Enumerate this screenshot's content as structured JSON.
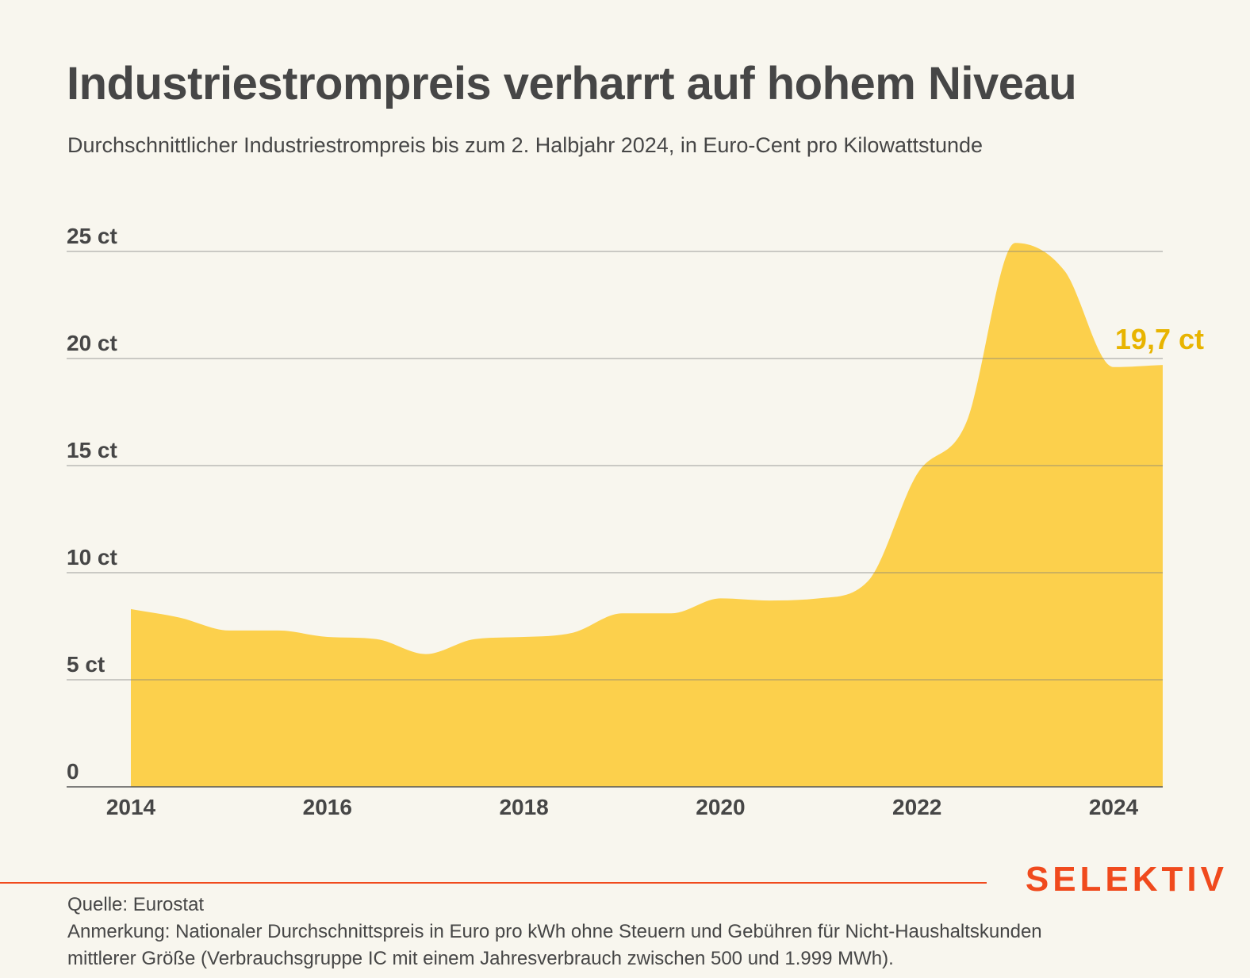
{
  "header": {
    "title": "Industriestrompreis verharrt auf hohem Niveau",
    "subtitle": "Durchschnittlicher Industriestrompreis bis zum 2. Halbjahr 2024, in Euro-Cent pro Kilowattstunde"
  },
  "chart_data": {
    "type": "area",
    "title": "Industriestrompreis verharrt auf hohem Niveau",
    "subtitle": "Durchschnittlicher Industriestrompreis bis zum 2. Halbjahr 2024, in Euro-Cent pro Kilowattstunde",
    "xlabel": "",
    "ylabel": "",
    "x": [
      2014.0,
      2014.5,
      2015.0,
      2015.5,
      2016.0,
      2016.5,
      2017.0,
      2017.5,
      2018.0,
      2018.5,
      2019.0,
      2019.5,
      2020.0,
      2020.5,
      2021.0,
      2021.5,
      2022.0,
      2022.5,
      2023.0,
      2023.5,
      2024.0,
      2024.5
    ],
    "values": [
      8.3,
      7.9,
      7.3,
      7.3,
      7.0,
      6.9,
      6.2,
      6.9,
      7.0,
      7.2,
      8.1,
      8.1,
      8.8,
      8.7,
      8.8,
      9.6,
      14.6,
      17.0,
      25.4,
      24.1,
      19.6,
      19.7
    ],
    "xlim": [
      2013.5,
      2024.75
    ],
    "ylim": [
      0,
      25
    ],
    "y_ticks": [
      0,
      5,
      10,
      15,
      20,
      25
    ],
    "y_tick_labels": [
      "0",
      "5 ct",
      "10 ct",
      "15 ct",
      "20 ct",
      "25 ct"
    ],
    "x_ticks": [
      2014,
      2016,
      2018,
      2020,
      2022,
      2024
    ],
    "x_tick_labels": [
      "2014",
      "2016",
      "2018",
      "2020",
      "2022",
      "2024"
    ],
    "grid": true,
    "end_label": "19,7 ct",
    "colors": {
      "fill": "#fcd04c",
      "end_label": "#e8b400",
      "grid": "#7d7d7d",
      "text": "#464646"
    }
  },
  "footer": {
    "brand": "SELEKTIV",
    "source": "Quelle: Eurostat",
    "note_line1": "Anmerkung: Nationaler Durchschnittspreis in Euro pro kWh ohne Steuern und Gebühren für Nicht-Haushaltskunden",
    "note_line2": "mittlerer Größe (Verbrauchsgruppe IC mit einem Jahresverbrauch zwischen 500 und 1.999 MWh).",
    "brand_color": "#f04a1d"
  }
}
